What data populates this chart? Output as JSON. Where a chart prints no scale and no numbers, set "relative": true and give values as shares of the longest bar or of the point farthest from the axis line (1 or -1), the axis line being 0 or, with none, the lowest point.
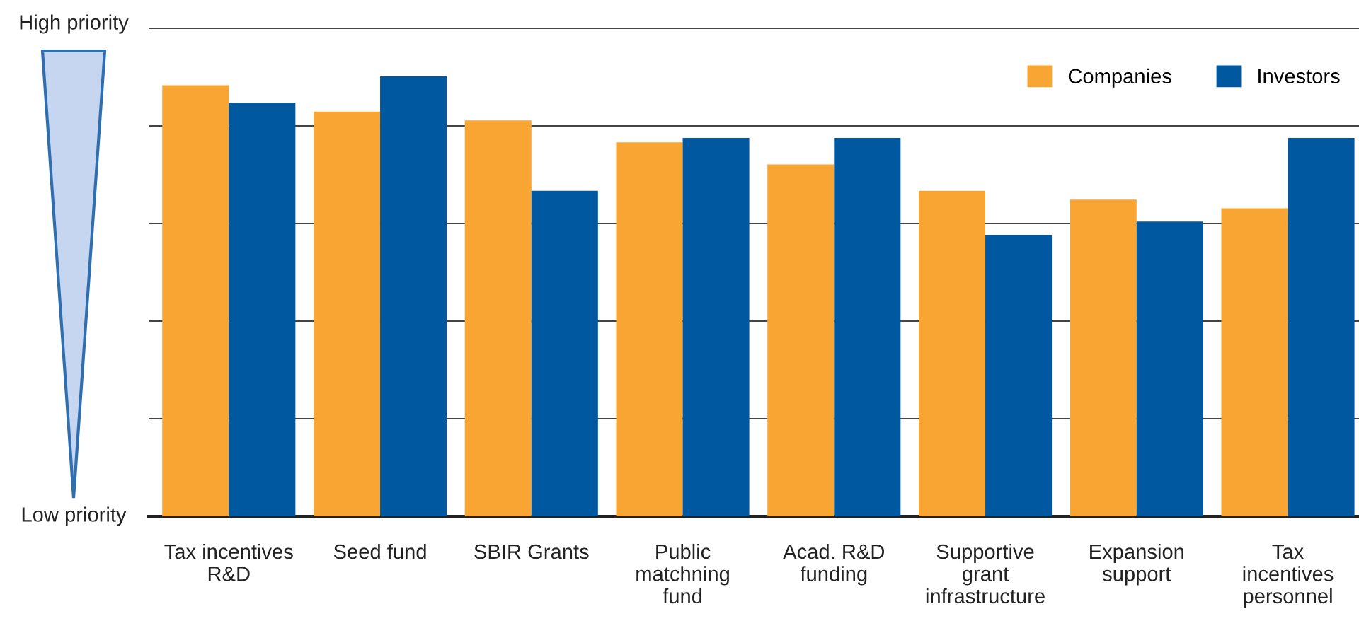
{
  "chart_data": {
    "type": "bar",
    "relative": true,
    "grid": "y",
    "legend": "top right",
    "categories": [
      "Tax incentives\nR&D",
      "Seed fund",
      "SBIR Grants",
      "Public\nmatchning\nfund",
      "Acad. R&D\nfunding",
      "Supportive\ngrant\ninfrastructure",
      "Expansion\nsupport",
      "Tax\nincentives\npersonnel"
    ],
    "series": [
      {
        "name": "Companies",
        "color": "#f8a533",
        "values": [
          0.98,
          0.92,
          0.9,
          0.85,
          0.8,
          0.74,
          0.72,
          0.7
        ]
      },
      {
        "name": "Investors",
        "color": "#0058a0",
        "values": [
          0.94,
          1.0,
          0.74,
          0.86,
          0.86,
          0.64,
          0.67,
          0.86
        ]
      }
    ],
    "annotations": [
      "High priority",
      "Low priority"
    ]
  }
}
